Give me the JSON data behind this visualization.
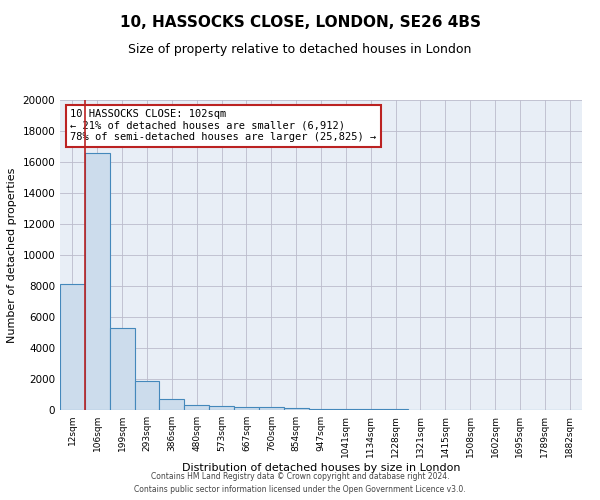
{
  "title": "10, HASSOCKS CLOSE, LONDON, SE26 4BS",
  "subtitle": "Size of property relative to detached houses in London",
  "xlabel": "Distribution of detached houses by size in London",
  "ylabel": "Number of detached properties",
  "footnote1": "Contains HM Land Registry data © Crown copyright and database right 2024.",
  "footnote2": "Contains public sector information licensed under the Open Government Licence v3.0.",
  "annotation_line1": "10 HASSOCKS CLOSE: 102sqm",
  "annotation_line2": "← 21% of detached houses are smaller (6,912)",
  "annotation_line3": "78% of semi-detached houses are larger (25,825) →",
  "tick_labels": [
    "12sqm",
    "106sqm",
    "199sqm",
    "293sqm",
    "386sqm",
    "480sqm",
    "573sqm",
    "667sqm",
    "760sqm",
    "854sqm",
    "947sqm",
    "1041sqm",
    "1134sqm",
    "1228sqm",
    "1321sqm",
    "1415sqm",
    "1508sqm",
    "1602sqm",
    "1695sqm",
    "1789sqm",
    "1882sqm"
  ],
  "bar_heights": [
    8100,
    16600,
    5300,
    1850,
    700,
    350,
    250,
    200,
    200,
    150,
    80,
    60,
    50,
    40,
    30,
    25,
    20,
    15,
    12,
    10,
    8
  ],
  "bar_color": "#ccdcec",
  "bar_edge_color": "#4488bb",
  "bar_edge_width": 0.8,
  "red_line_color": "#bb2222",
  "annotation_box_color": "#bb2222",
  "ylim": [
    0,
    20000
  ],
  "yticks": [
    0,
    2000,
    4000,
    6000,
    8000,
    10000,
    12000,
    14000,
    16000,
    18000,
    20000
  ],
  "grid_color": "#bbbbcc",
  "background_color": "#e8eef6",
  "fig_background": "#ffffff",
  "title_fontsize": 11,
  "subtitle_fontsize": 9,
  "annotation_fontsize": 7.5,
  "tick_fontsize": 6.5,
  "ylabel_fontsize": 8,
  "xlabel_fontsize": 8,
  "footnote_fontsize": 5.5
}
